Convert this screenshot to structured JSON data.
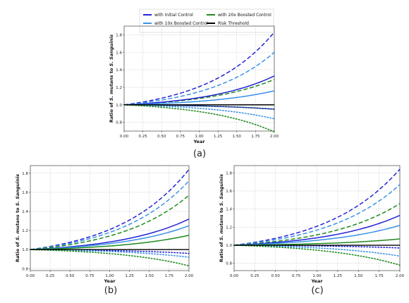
{
  "legend": {
    "placement": "top-center",
    "entries": [
      {
        "key": "initial",
        "label": "with Initial Control",
        "color": "#2323d6"
      },
      {
        "key": "10x",
        "label": "with 10x Boosted Control",
        "color": "#3a92e6"
      },
      {
        "key": "20x",
        "label": "with 20x Boosted Control",
        "color": "#1f8a1f"
      },
      {
        "key": "risk",
        "label": "Risk Threshold",
        "color": "#000000"
      }
    ]
  },
  "chart_data": [
    {
      "type": "line",
      "panel_label": "(a)",
      "xlabel": "Year",
      "ylabel_pre": "Ratio of ",
      "ylabel_species1": "S. mutans",
      "ylabel_mid": " to ",
      "ylabel_species2": "S. Sanguinis",
      "xlim": [
        0,
        2
      ],
      "ylim": [
        0.7,
        1.9
      ],
      "xticks": [
        0,
        0.25,
        0.5,
        0.75,
        1,
        1.25,
        1.5,
        1.75,
        2
      ],
      "xtick_labels": [
        "0.00",
        "0.25",
        "0.50",
        "0.75",
        "1.00",
        "1.25",
        "1.50",
        "1.75",
        "2.00"
      ],
      "yticks": [
        0.8,
        1.0,
        1.2,
        1.4,
        1.6,
        1.8
      ],
      "ytick_labels": [
        "0.8",
        "1.0",
        "1.2",
        "1.4",
        "1.6",
        "1.8"
      ],
      "grid": true,
      "risk_threshold": 1.0,
      "series": [
        {
          "group": "initial",
          "style": "dashed",
          "end": 1.83
        },
        {
          "group": "10x",
          "style": "dashed",
          "end": 1.6
        },
        {
          "group": "20x",
          "style": "dashed",
          "end": 1.29
        },
        {
          "group": "initial",
          "style": "solid",
          "end": 1.33
        },
        {
          "group": "10x",
          "style": "solid",
          "end": 1.16
        },
        {
          "group": "20x",
          "style": "solid",
          "end": 0.95
        },
        {
          "group": "initial",
          "style": "dotted",
          "end": 0.95
        },
        {
          "group": "10x",
          "style": "dotted",
          "end": 0.84
        },
        {
          "group": "20x",
          "style": "dotted",
          "end": 0.69
        }
      ]
    },
    {
      "type": "line",
      "panel_label": "(b)",
      "xlabel": "Year",
      "ylabel_pre": "Ratio of ",
      "ylabel_species1": "S. mutans",
      "ylabel_mid": " to ",
      "ylabel_species2": "S. Sanguinis",
      "xlim": [
        0,
        2
      ],
      "ylim": [
        0.78,
        1.88
      ],
      "xticks": [
        0,
        0.25,
        0.5,
        0.75,
        1,
        1.25,
        1.5,
        1.75,
        2
      ],
      "xtick_labels": [
        "0.00",
        "0.25",
        "0.50",
        "0.75",
        "1.00",
        "1.25",
        "1.50",
        "1.75",
        "2.00"
      ],
      "yticks": [
        0.8,
        1.0,
        1.2,
        1.4,
        1.6,
        1.8
      ],
      "ytick_labels": [
        "0.8",
        "1.0",
        "1.2",
        "1.4",
        "1.6",
        "1.8"
      ],
      "grid": true,
      "risk_threshold": 1.0,
      "series": [
        {
          "group": "initial",
          "style": "dashed",
          "end": 1.84
        },
        {
          "group": "10x",
          "style": "dashed",
          "end": 1.72
        },
        {
          "group": "20x",
          "style": "dashed",
          "end": 1.57
        },
        {
          "group": "initial",
          "style": "solid",
          "end": 1.32
        },
        {
          "group": "10x",
          "style": "solid",
          "end": 1.25
        },
        {
          "group": "20x",
          "style": "solid",
          "end": 1.15
        },
        {
          "group": "initial",
          "style": "dotted",
          "end": 0.96
        },
        {
          "group": "10x",
          "style": "dotted",
          "end": 0.92
        },
        {
          "group": "20x",
          "style": "dotted",
          "end": 0.83
        }
      ]
    },
    {
      "type": "line",
      "panel_label": "(c)",
      "xlabel": "Year",
      "ylabel_pre": "Ratio of ",
      "ylabel_species1": "S. mutans",
      "ylabel_mid": " to ",
      "ylabel_species2": "S. Sanguinis",
      "xlim": [
        0,
        2
      ],
      "ylim": [
        0.72,
        1.88
      ],
      "xticks": [
        0,
        0.25,
        0.5,
        0.75,
        1,
        1.25,
        1.5,
        1.75,
        2
      ],
      "xtick_labels": [
        "0.00",
        "0.25",
        "0.50",
        "0.75",
        "1.00",
        "1.25",
        "1.50",
        "1.75",
        "2.00"
      ],
      "yticks": [
        0.8,
        1.0,
        1.2,
        1.4,
        1.6,
        1.8
      ],
      "ytick_labels": [
        "0.8",
        "1.0",
        "1.2",
        "1.4",
        "1.6",
        "1.8"
      ],
      "grid": true,
      "risk_threshold": 1.0,
      "series": [
        {
          "group": "initial",
          "style": "dashed",
          "end": 1.84
        },
        {
          "group": "10x",
          "style": "dashed",
          "end": 1.67
        },
        {
          "group": "20x",
          "style": "dashed",
          "end": 1.46
        },
        {
          "group": "initial",
          "style": "solid",
          "end": 1.33
        },
        {
          "group": "10x",
          "style": "solid",
          "end": 1.22
        },
        {
          "group": "20x",
          "style": "solid",
          "end": 1.07
        },
        {
          "group": "initial",
          "style": "dotted",
          "end": 0.97
        },
        {
          "group": "10x",
          "style": "dotted",
          "end": 0.88
        },
        {
          "group": "20x",
          "style": "dotted",
          "end": 0.78
        }
      ]
    }
  ]
}
